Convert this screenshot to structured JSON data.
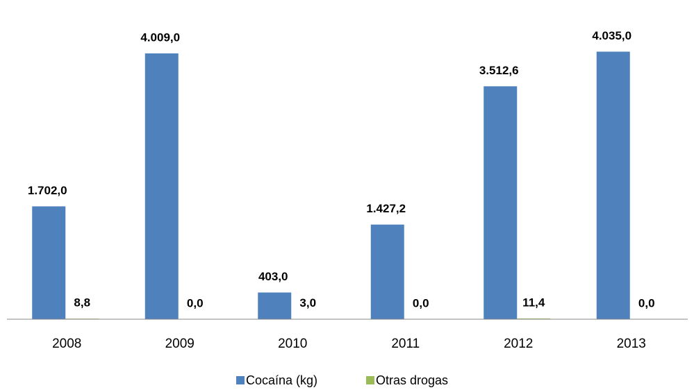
{
  "chart_data": {
    "type": "bar",
    "categories": [
      "2008",
      "2009",
      "2010",
      "2011",
      "2012",
      "2013"
    ],
    "series": [
      {
        "name": "Cocaína (kg)",
        "color": "#4f81bd",
        "values": [
          1702.0,
          4009.0,
          403.0,
          1427.2,
          3512.6,
          4035.0
        ],
        "value_labels": [
          "1.702,0",
          "4.009,0",
          "403,0",
          "1.427,2",
          "3.512,6",
          "4.035,0"
        ]
      },
      {
        "name": "Otras drogas",
        "color": "#9bbb59",
        "values": [
          8.8,
          0.0,
          3.0,
          0.0,
          11.4,
          0.0
        ],
        "value_labels": [
          "8,8",
          "0,0",
          "3,0",
          "0,0",
          "11,4",
          "0,0"
        ]
      }
    ],
    "ylim": [
      0,
      4500
    ],
    "legend": "bottom"
  }
}
